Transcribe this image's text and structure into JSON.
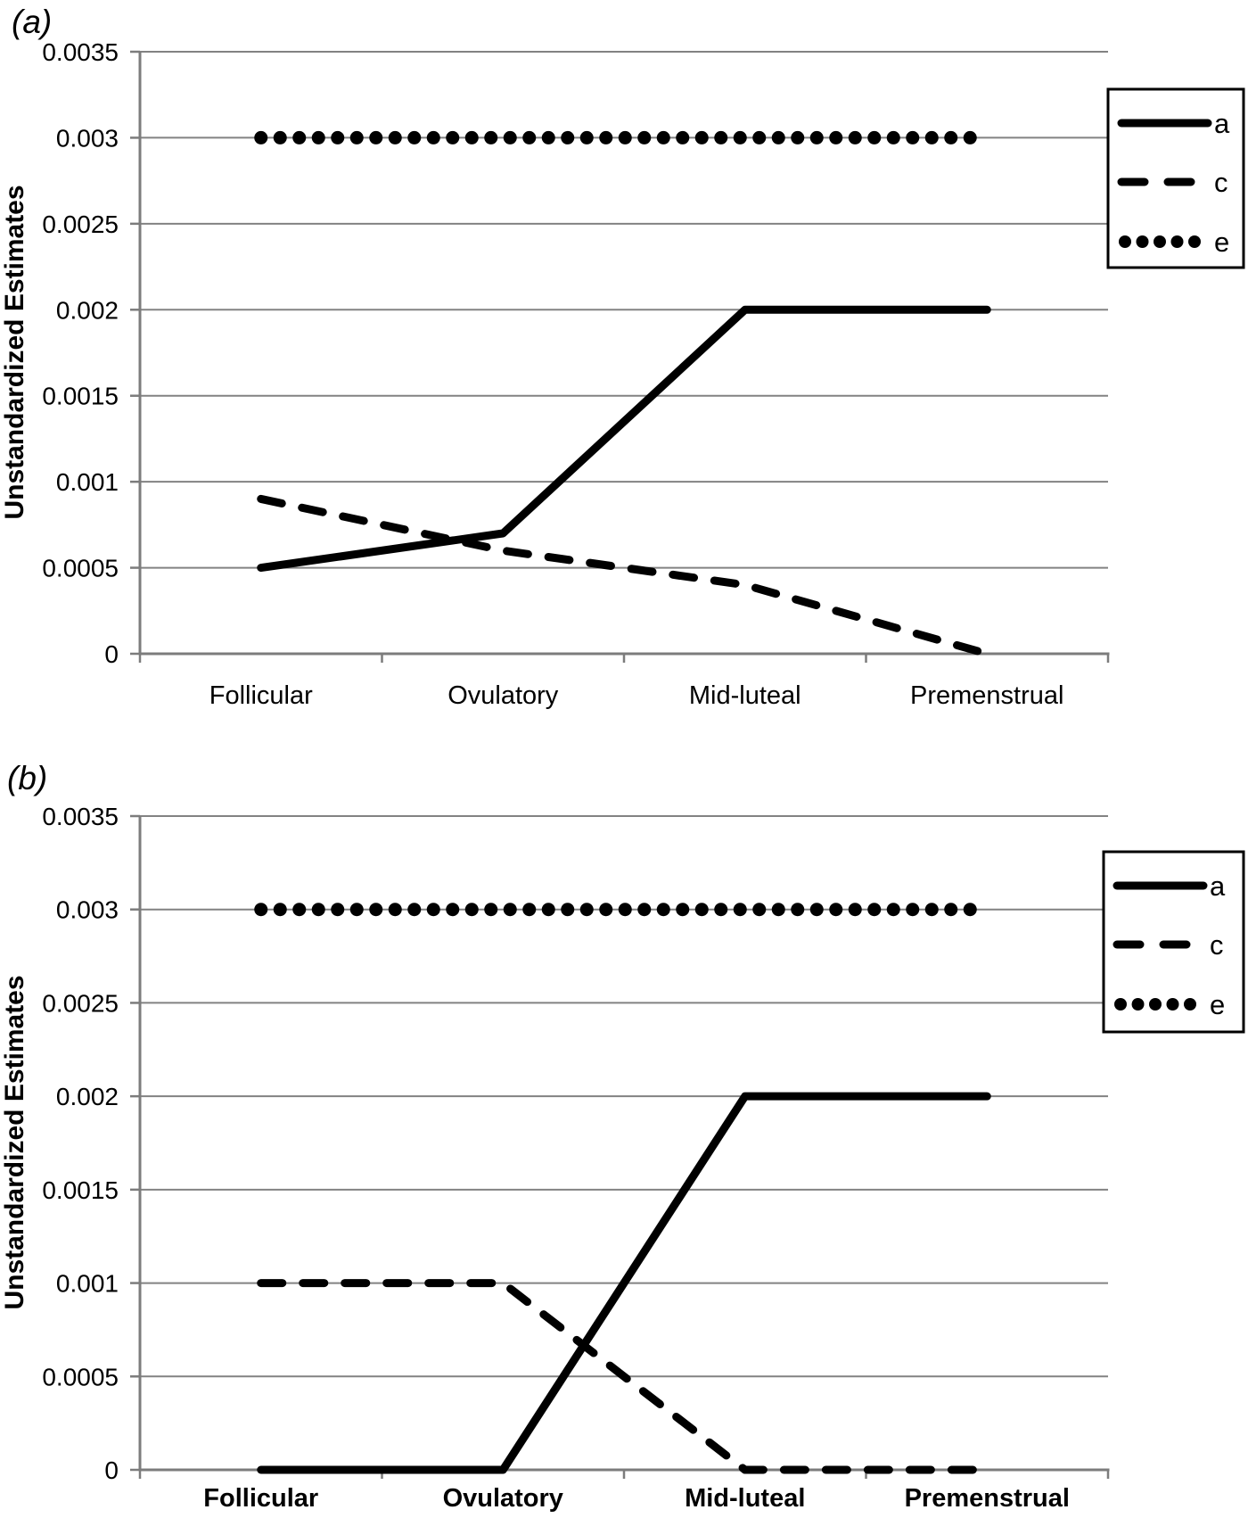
{
  "colors": {
    "series": "#000000",
    "grid": "#828282",
    "axis": "#7c7c7c",
    "text": "#000000",
    "legend_border": "#000000",
    "background": "#ffffff"
  },
  "chart_data": [
    {
      "type": "line",
      "title": "(a)",
      "ylabel": "Unstandardized Estimates",
      "xlabel": "",
      "categories": [
        "Follicular",
        "Ovulatory",
        "Mid-luteal",
        "Premenstrual"
      ],
      "x_labels_bold": false,
      "ylim": [
        0,
        0.0035
      ],
      "yticks": [
        0,
        0.0005,
        0.001,
        0.0015,
        0.002,
        0.0025,
        0.003,
        0.0035
      ],
      "ytick_labels": [
        "0",
        "0.0005",
        "0.001",
        "0.0015",
        "0.002",
        "0.0025",
        "0.003",
        "0.0035"
      ],
      "grid": true,
      "legend_position": "right-top",
      "series": [
        {
          "name": "a",
          "style": "solid",
          "values": [
            0.0005,
            0.0007,
            0.002,
            0.002
          ]
        },
        {
          "name": "c",
          "style": "dashed",
          "values": [
            0.0009,
            0.0006,
            0.0004,
            0
          ]
        },
        {
          "name": "e",
          "style": "dotted",
          "values": [
            0.003,
            0.003,
            0.003,
            0.003
          ]
        }
      ]
    },
    {
      "type": "line",
      "title": "(b)",
      "ylabel": "Unstandardized Estimates",
      "xlabel": "",
      "categories": [
        "Follicular",
        "Ovulatory",
        "Mid-luteal",
        "Premenstrual"
      ],
      "x_labels_bold": true,
      "ylim": [
        0,
        0.0035
      ],
      "yticks": [
        0,
        0.0005,
        0.001,
        0.0015,
        0.002,
        0.0025,
        0.003,
        0.0035
      ],
      "ytick_labels": [
        "0",
        "0.0005",
        "0.001",
        "0.0015",
        "0.002",
        "0.0025",
        "0.003",
        "0.0035"
      ],
      "grid": true,
      "legend_position": "right-top",
      "series": [
        {
          "name": "a",
          "style": "solid",
          "values": [
            0,
            0,
            0.002,
            0.002
          ]
        },
        {
          "name": "c",
          "style": "dashed",
          "values": [
            0.001,
            0.001,
            0,
            0
          ]
        },
        {
          "name": "e",
          "style": "dotted",
          "values": [
            0.003,
            0.003,
            0.003,
            0.003
          ]
        }
      ]
    }
  ]
}
